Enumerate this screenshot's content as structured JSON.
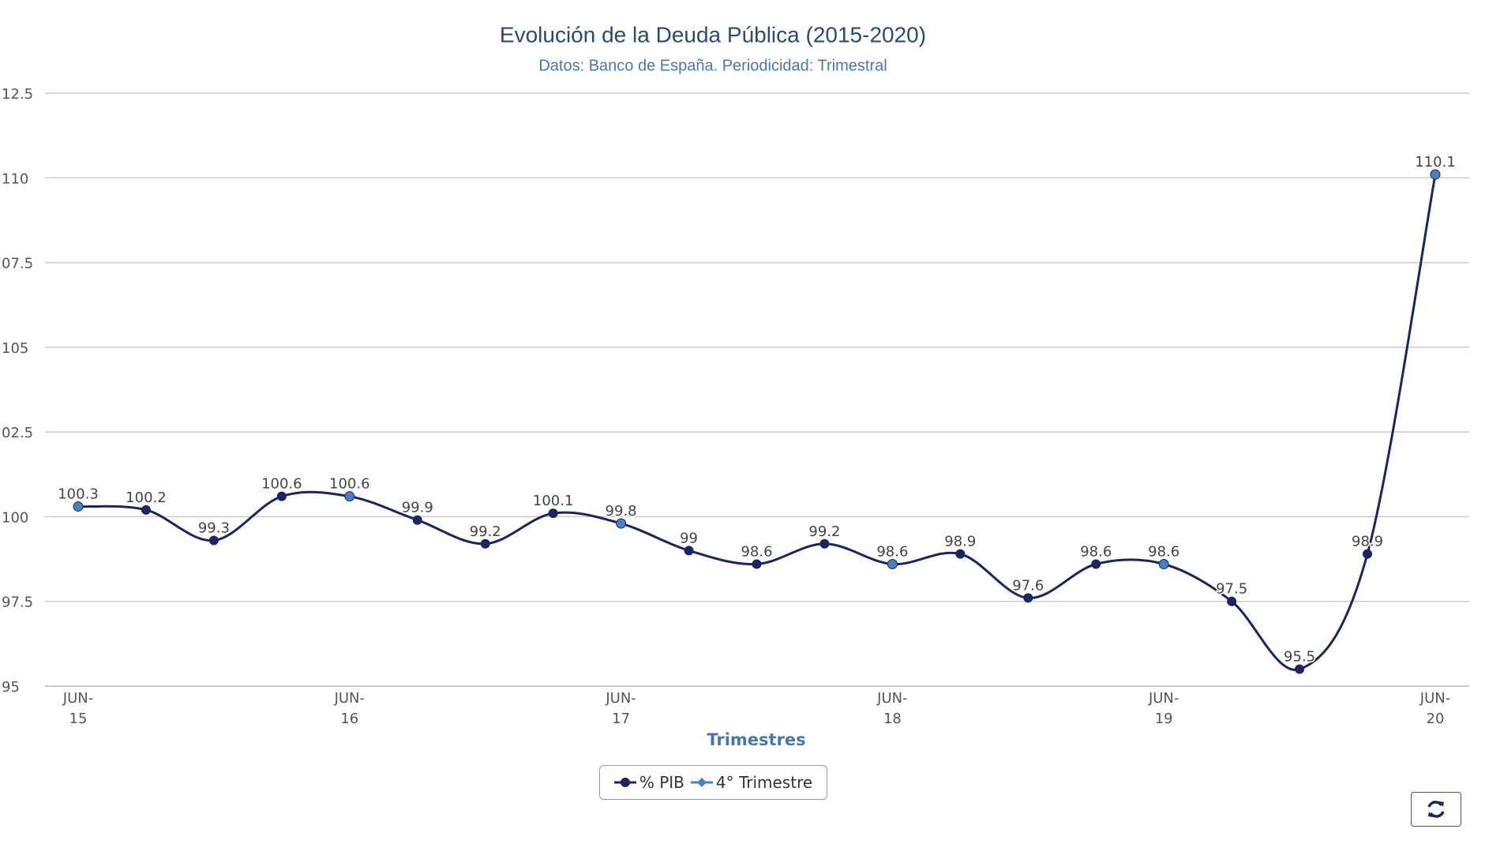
{
  "chart_data": {
    "type": "line",
    "title": "Evolución de la Deuda Pública (2015-2020)",
    "subtitle": "Datos: Banco de España. Periodicidad: Trimestral",
    "x_label": "Trimestres",
    "categories": [
      "JUN-\n15",
      null,
      null,
      null,
      "JUN-\n16",
      null,
      null,
      null,
      "JUN-\n17",
      null,
      null,
      null,
      "JUN-\n18",
      null,
      null,
      null,
      "JUN-\n19",
      null,
      null,
      null,
      "JUN-\n20"
    ],
    "series": [
      {
        "name": "% PIB",
        "color": "#1b2560",
        "values": [
          100.3,
          100.2,
          99.3,
          100.6,
          100.6,
          99.9,
          99.2,
          100.1,
          99.8,
          99,
          98.6,
          99.2,
          98.6,
          98.9,
          97.6,
          98.6,
          98.6,
          97.5,
          95.5,
          98.9,
          110.1
        ]
      },
      {
        "name": "4° Trimestre",
        "color": "#4a7fc1",
        "values": [
          100.3,
          null,
          null,
          null,
          100.6,
          null,
          null,
          null,
          99.8,
          null,
          null,
          null,
          98.6,
          null,
          null,
          null,
          98.6,
          null,
          null,
          null,
          110.1
        ]
      }
    ],
    "ylim": [
      95,
      112.5
    ],
    "yticks": [
      95,
      {
        "value": 97.5,
        "label": "97.5"
      },
      100,
      {
        "value": 102.5,
        "label": "02.5"
      },
      105,
      {
        "value": 107.5,
        "label": "07.5"
      },
      110,
      {
        "value": 112.5,
        "label": "12.5"
      }
    ],
    "grid": true
  }
}
